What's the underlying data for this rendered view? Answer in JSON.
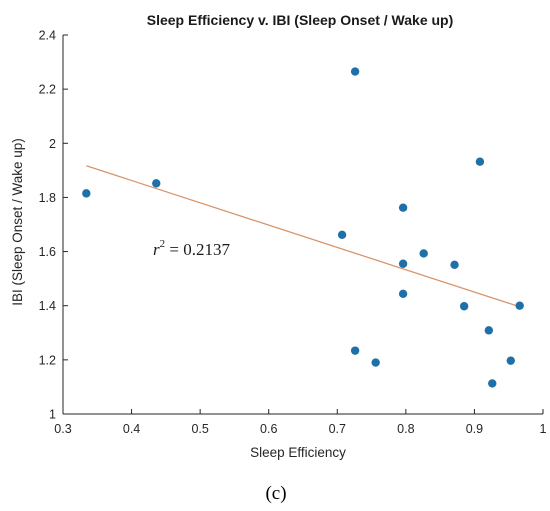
{
  "chart_data": {
    "type": "scatter",
    "title": "Sleep Efficiency v. IBI (Sleep Onset / Wake up)",
    "xlabel": "Sleep Efficiency",
    "ylabel": "IBI (Sleep Onset / Wake up)",
    "xlim": [
      0.3,
      1
    ],
    "ylim": [
      1,
      2.4
    ],
    "xticks": [
      "0.3",
      "0.4",
      "0.5",
      "0.6",
      "0.7",
      "0.8",
      "0.9",
      "1"
    ],
    "yticks": [
      "1",
      "1.2",
      "1.4",
      "1.6",
      "1.8",
      "2",
      "2.2",
      "2.4"
    ],
    "grid": false,
    "points": [
      {
        "x": 0.334,
        "y": 1.815
      },
      {
        "x": 0.436,
        "y": 1.852
      },
      {
        "x": 0.707,
        "y": 1.662
      },
      {
        "x": 0.726,
        "y": 2.265
      },
      {
        "x": 0.726,
        "y": 1.234
      },
      {
        "x": 0.756,
        "y": 1.19
      },
      {
        "x": 0.796,
        "y": 1.762
      },
      {
        "x": 0.796,
        "y": 1.555
      },
      {
        "x": 0.796,
        "y": 1.444
      },
      {
        "x": 0.826,
        "y": 1.593
      },
      {
        "x": 0.871,
        "y": 1.551
      },
      {
        "x": 0.885,
        "y": 1.398
      },
      {
        "x": 0.908,
        "y": 1.932
      },
      {
        "x": 0.921,
        "y": 1.309
      },
      {
        "x": 0.926,
        "y": 1.113
      },
      {
        "x": 0.953,
        "y": 1.197
      },
      {
        "x": 0.966,
        "y": 1.4
      }
    ],
    "trendline": {
      "x": [
        0.334,
        0.966
      ],
      "y": [
        1.917,
        1.396
      ]
    },
    "annotation": {
      "base": "r",
      "sup": "2",
      "rest": " = 0.2137"
    },
    "colors": {
      "points": "#1f6fa8",
      "trendline": "#d9956c",
      "axis": "#262626"
    }
  },
  "caption": "(c)"
}
